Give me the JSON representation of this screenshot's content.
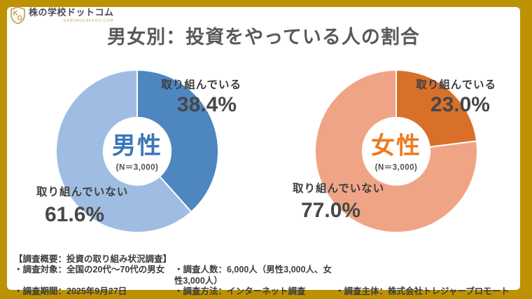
{
  "logo": {
    "brand": "株の学校ドットコム",
    "subtext": "KABUNOGAKKOU.COM",
    "monogram_k": "K",
    "monogram_g": "G"
  },
  "title": "男女別：投資をやっている人の割合",
  "chart_data": [
    {
      "type": "pie",
      "donut": true,
      "group": "男性",
      "n_label": "(N＝3,000)",
      "categories": [
        "取り組んでいる",
        "取り組んでいない"
      ],
      "values": [
        38.4,
        61.6
      ],
      "value_labels": [
        "38.4%",
        "61.6%"
      ],
      "colors": [
        "#4e86bf",
        "#9fbde2"
      ],
      "center_text_color": "#3b76b8",
      "start_angle_deg": 0,
      "direction": "clockwise",
      "legend_position": "callout-labels"
    },
    {
      "type": "pie",
      "donut": true,
      "group": "女性",
      "n_label": "(N＝3,000)",
      "categories": [
        "取り組んでいる",
        "取り組んでいない"
      ],
      "values": [
        23.0,
        77.0
      ],
      "value_labels": [
        "23.0%",
        "77.0%"
      ],
      "colors": [
        "#d8702a",
        "#f0a486"
      ],
      "center_text_color": "#ee7a1f",
      "start_angle_deg": 0,
      "direction": "clockwise",
      "legend_position": "callout-labels"
    }
  ],
  "footer": {
    "heading": "【調査概要：投資の取り組み状況調査】",
    "row1": [
      "・調査対象：全国の20代〜70代の男女",
      "・調査人数：6,000人（男性3,000人、女性3,000人）"
    ],
    "row2": [
      "・調査期間：2025年9月27日",
      "・調査方法：インターネット調査",
      "・調査主体：株式会社トレジャープロモート"
    ]
  },
  "colors": {
    "frame_border": "#bd9202",
    "background": "#ffffff",
    "title_text": "#595959",
    "label_text": "#3d3d3d",
    "footer_text": "#3c3c3c"
  }
}
